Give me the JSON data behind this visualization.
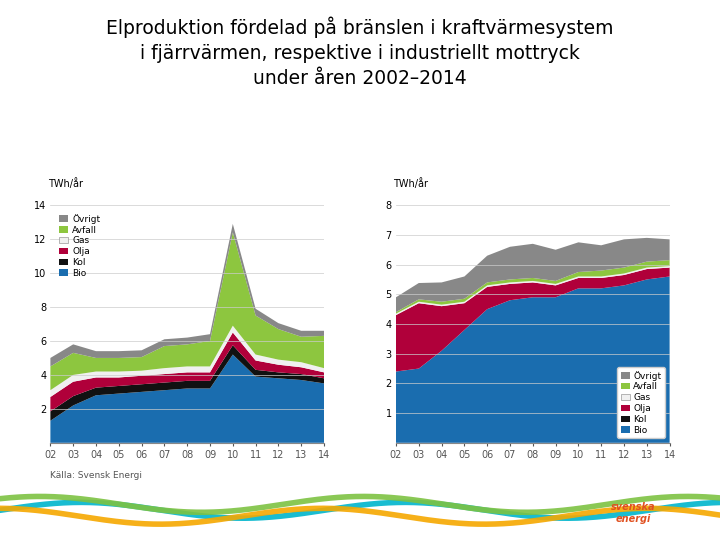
{
  "title_line1": "Elproduktion fördelad på bränslen i kraftvärmesystem",
  "title_line2": "i fjärrvärmen, respektive i industriellt mottryck",
  "title_line3": "under åren 2002–2014",
  "title_fontsize": 13.5,
  "years": [
    2002,
    2003,
    2004,
    2005,
    2006,
    2007,
    2008,
    2009,
    2010,
    2011,
    2012,
    2013,
    2014
  ],
  "ylabel_left": "TWh/år",
  "ylabel_right": "TWh/år",
  "source": "Källa: Svensk Energi",
  "colors": {
    "Övrigt": "#888888",
    "Avfall": "#8dc63f",
    "Gas": "#f0f0f0",
    "Olja": "#b0003a",
    "Kol": "#111111",
    "Bio": "#1a6daf"
  },
  "left_chart": {
    "ylim": [
      0,
      14
    ],
    "yticks": [
      0,
      2,
      4,
      6,
      8,
      10,
      12,
      14
    ],
    "Bio": [
      1.3,
      2.2,
      2.8,
      2.9,
      3.0,
      3.1,
      3.2,
      3.2,
      5.2,
      3.9,
      3.8,
      3.7,
      3.5
    ],
    "Kol": [
      0.55,
      0.55,
      0.45,
      0.45,
      0.45,
      0.45,
      0.45,
      0.45,
      0.55,
      0.4,
      0.35,
      0.35,
      0.3
    ],
    "Olja": [
      0.85,
      0.85,
      0.6,
      0.5,
      0.5,
      0.5,
      0.5,
      0.5,
      0.75,
      0.55,
      0.45,
      0.4,
      0.35
    ],
    "Gas": [
      0.4,
      0.4,
      0.35,
      0.35,
      0.3,
      0.35,
      0.35,
      0.35,
      0.4,
      0.35,
      0.3,
      0.3,
      0.25
    ],
    "Avfall": [
      1.4,
      1.3,
      0.8,
      0.8,
      0.8,
      1.3,
      1.3,
      1.5,
      5.5,
      2.3,
      1.8,
      1.5,
      1.9
    ],
    "Övrigt": [
      0.5,
      0.5,
      0.4,
      0.4,
      0.4,
      0.4,
      0.4,
      0.4,
      0.5,
      0.4,
      0.35,
      0.35,
      0.3
    ]
  },
  "right_chart": {
    "ylim": [
      0,
      8
    ],
    "yticks": [
      0,
      1,
      2,
      3,
      4,
      5,
      6,
      7,
      8
    ],
    "Bio": [
      2.4,
      2.5,
      3.1,
      3.8,
      4.5,
      4.8,
      4.9,
      4.9,
      5.2,
      5.2,
      5.3,
      5.5,
      5.6
    ],
    "Kol": [
      0.0,
      0.0,
      0.0,
      0.0,
      0.0,
      0.0,
      0.0,
      0.0,
      0.0,
      0.0,
      0.0,
      0.0,
      0.0
    ],
    "Olja": [
      1.9,
      2.2,
      1.5,
      0.9,
      0.75,
      0.55,
      0.5,
      0.4,
      0.35,
      0.35,
      0.35,
      0.35,
      0.3
    ],
    "Gas": [
      0.05,
      0.05,
      0.05,
      0.05,
      0.05,
      0.05,
      0.05,
      0.05,
      0.05,
      0.05,
      0.05,
      0.05,
      0.05
    ],
    "Avfall": [
      0.05,
      0.08,
      0.1,
      0.1,
      0.1,
      0.1,
      0.1,
      0.1,
      0.15,
      0.2,
      0.2,
      0.2,
      0.2
    ],
    "Övrigt": [
      0.5,
      0.55,
      0.65,
      0.75,
      0.9,
      1.1,
      1.15,
      1.05,
      1.0,
      0.85,
      0.95,
      0.8,
      0.7
    ]
  },
  "legend_order": [
    "Övrigt",
    "Avfall",
    "Gas",
    "Olja",
    "Kol",
    "Bio"
  ],
  "background_color": "#ffffff",
  "grid_color": "#cccccc"
}
